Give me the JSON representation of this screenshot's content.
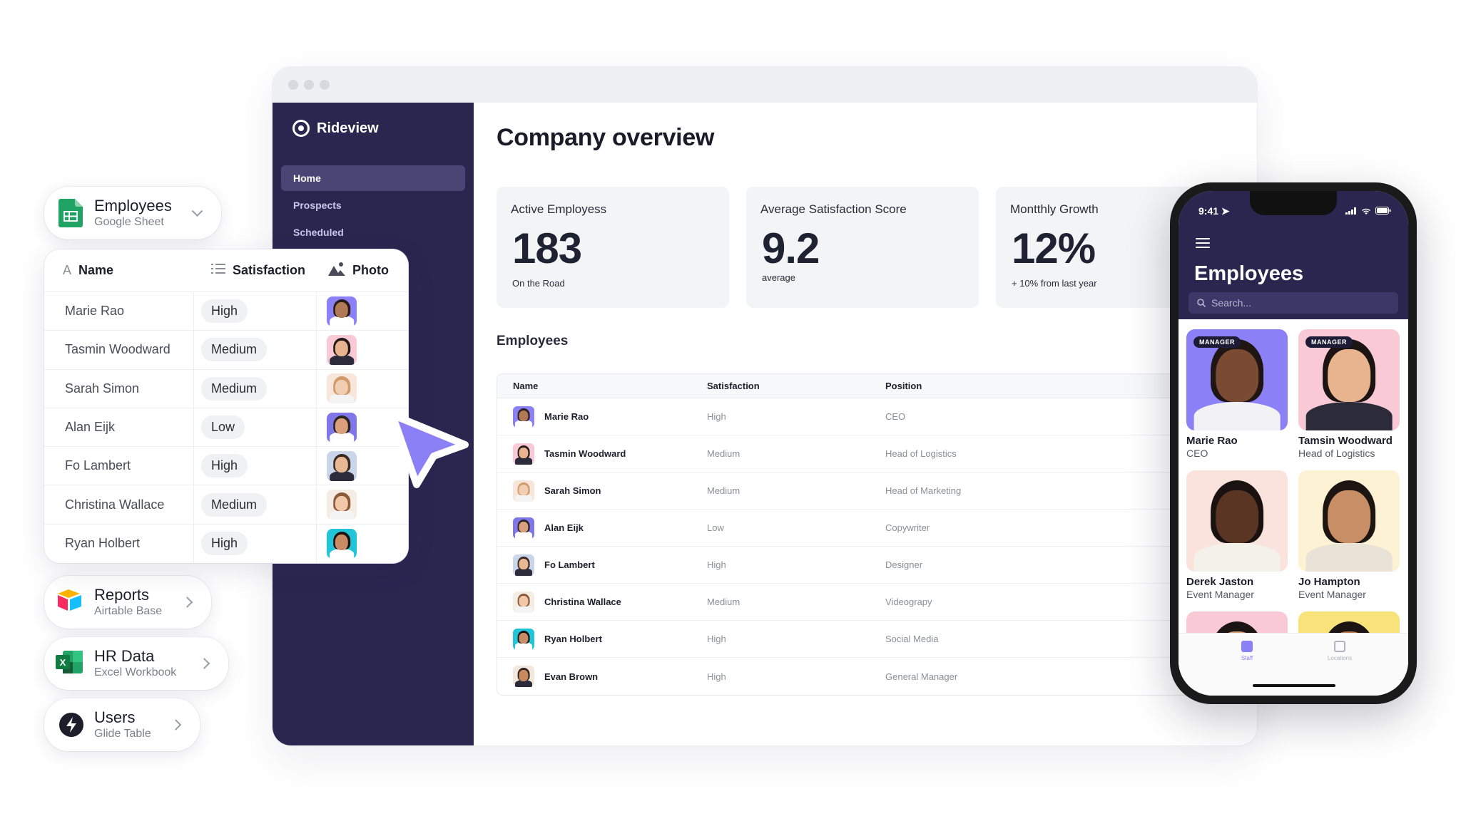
{
  "sources": [
    {
      "title": "Employees",
      "subtitle": "Google Sheet",
      "icon": "google-sheets-icon",
      "chevron": "down"
    },
    {
      "title": "Reports",
      "subtitle": "Airtable Base",
      "icon": "airtable-icon",
      "chevron": "right"
    },
    {
      "title": "HR Data",
      "subtitle": "Excel Workbook",
      "icon": "excel-icon",
      "chevron": "right"
    },
    {
      "title": "Users",
      "subtitle": "Glide Table",
      "icon": "glide-icon",
      "chevron": "right"
    }
  ],
  "grid": {
    "columns": [
      "Name",
      "Satisfaction",
      "Photo"
    ],
    "rows": [
      {
        "name": "Marie Rao",
        "satisfaction": "High"
      },
      {
        "name": "Tasmin Woodward",
        "satisfaction": "Medium"
      },
      {
        "name": "Sarah Simon",
        "satisfaction": "Medium"
      },
      {
        "name": "Alan Eijk",
        "satisfaction": "Low"
      },
      {
        "name": "Fo Lambert",
        "satisfaction": "High"
      },
      {
        "name": "Christina Wallace",
        "satisfaction": "Medium"
      },
      {
        "name": "Ryan Holbert",
        "satisfaction": "High"
      }
    ]
  },
  "app": {
    "brand": "Rideview",
    "nav": [
      "Home",
      "Prospects",
      "Scheduled"
    ],
    "active_nav": "Home",
    "page_title": "Company overview",
    "stats": [
      {
        "label": "Active Employess",
        "value": "183",
        "sub": "On the Road"
      },
      {
        "label": "Average Satisfaction Score",
        "value": "9.2",
        "sub": "average"
      },
      {
        "label": "Montthly Growth",
        "value": "12%",
        "sub": "+ 10% from last year"
      }
    ],
    "employees_title": "Employees",
    "table": {
      "headers": [
        "Name",
        "Satisfaction",
        "Position"
      ],
      "rows": [
        {
          "name": "Marie Rao",
          "satisfaction": "High",
          "position": "CEO"
        },
        {
          "name": "Tasmin Woodward",
          "satisfaction": "Medium",
          "position": "Head of Logistics"
        },
        {
          "name": "Sarah Simon",
          "satisfaction": "Medium",
          "position": "Head of Marketing"
        },
        {
          "name": "Alan Eijk",
          "satisfaction": "Low",
          "position": "Copywriter"
        },
        {
          "name": "Fo Lambert",
          "satisfaction": "High",
          "position": "Designer"
        },
        {
          "name": "Christina Wallace",
          "satisfaction": "Medium",
          "position": "Videograpy"
        },
        {
          "name": "Ryan Holbert",
          "satisfaction": "High",
          "position": "Social Media"
        },
        {
          "name": "Evan Brown",
          "satisfaction": "High",
          "position": "General Manager"
        }
      ]
    }
  },
  "phone": {
    "time": "9:41",
    "title": "Employees",
    "search_placeholder": "Search...",
    "cards": [
      {
        "name": "Marie Rao",
        "role": "CEO",
        "badge": "MANAGER"
      },
      {
        "name": "Tamsin Woodward",
        "role": "Head of Logistics",
        "badge": "MANAGER"
      },
      {
        "name": "Derek Jaston",
        "role": "Event Manager",
        "badge": ""
      },
      {
        "name": "Jo Hampton",
        "role": "Event Manager",
        "badge": ""
      }
    ],
    "tabs": [
      "Staff",
      "Locations"
    ]
  },
  "colors": {
    "sidebar": "#2a2650",
    "accent": "#7b6ef6",
    "excel_green": "#1e7145",
    "sheets_green": "#20a464"
  }
}
